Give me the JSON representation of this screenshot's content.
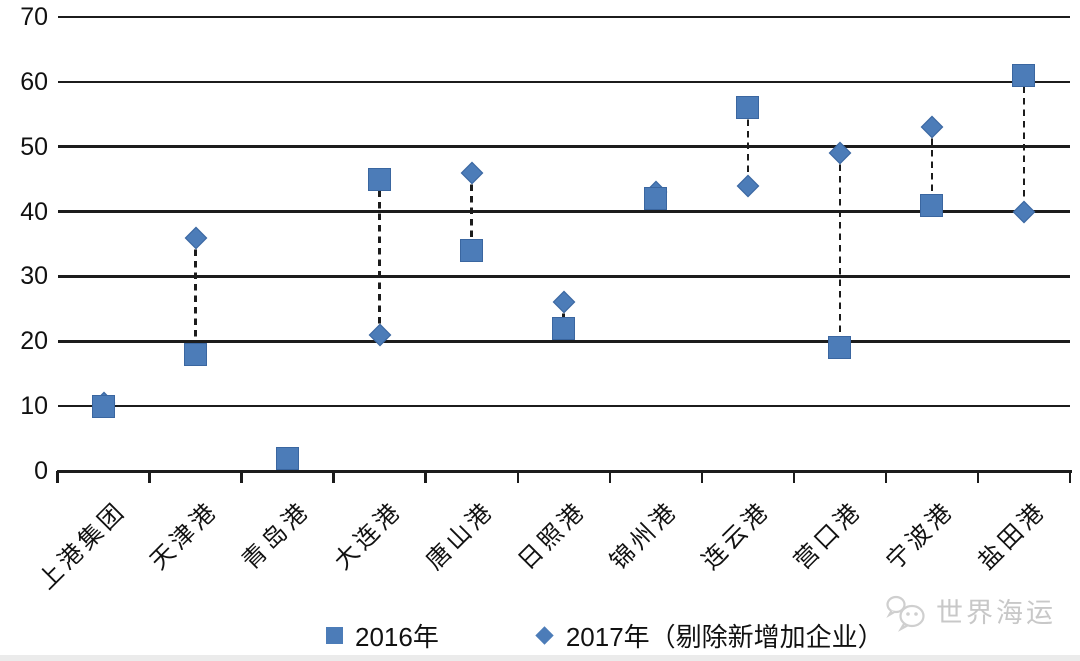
{
  "chart_data": {
    "type": "scatter",
    "title": "",
    "categories": [
      "上港集团",
      "天津港",
      "青岛港",
      "大连港",
      "唐山港",
      "日照港",
      "锦州港",
      "连云港",
      "营口港",
      "宁波港",
      "盐田港"
    ],
    "series": [
      {
        "name": "2016年",
        "marker": "square",
        "values": [
          10,
          18,
          2,
          45,
          34,
          22,
          42,
          56,
          19,
          41,
          61
        ]
      },
      {
        "name": "2017年（剔除新增加企业）",
        "marker": "diamond",
        "values": [
          10.5,
          36,
          null,
          21,
          46,
          26,
          43,
          44,
          49,
          53,
          40
        ]
      }
    ],
    "connectors": "vertical dashed line between the 2016 and 2017 point of each category",
    "xlabel": "",
    "ylabel": "",
    "ylim": [
      0,
      70
    ],
    "yticks": [
      0,
      10,
      20,
      30,
      40,
      50,
      60,
      70
    ],
    "grid": true,
    "grid_color": "#1c1c1c",
    "legend_position": "bottom",
    "x_labels_rotation_deg": -45
  },
  "colors": {
    "marker_fill": "#4C7CB8",
    "marker_border": "#3A66A0",
    "grid_line": "#1c1c1c",
    "connector": "#1c1c1c",
    "text": "#111111",
    "watermark": "#c8c8c8",
    "background": "#ffffff"
  },
  "legend": {
    "items": [
      {
        "label": "2016年",
        "marker": "square"
      },
      {
        "label": "2017年（剔除新增加企业）",
        "marker": "diamond"
      }
    ]
  },
  "watermark": {
    "icon": "wechat-icon",
    "text": "世界海运"
  }
}
